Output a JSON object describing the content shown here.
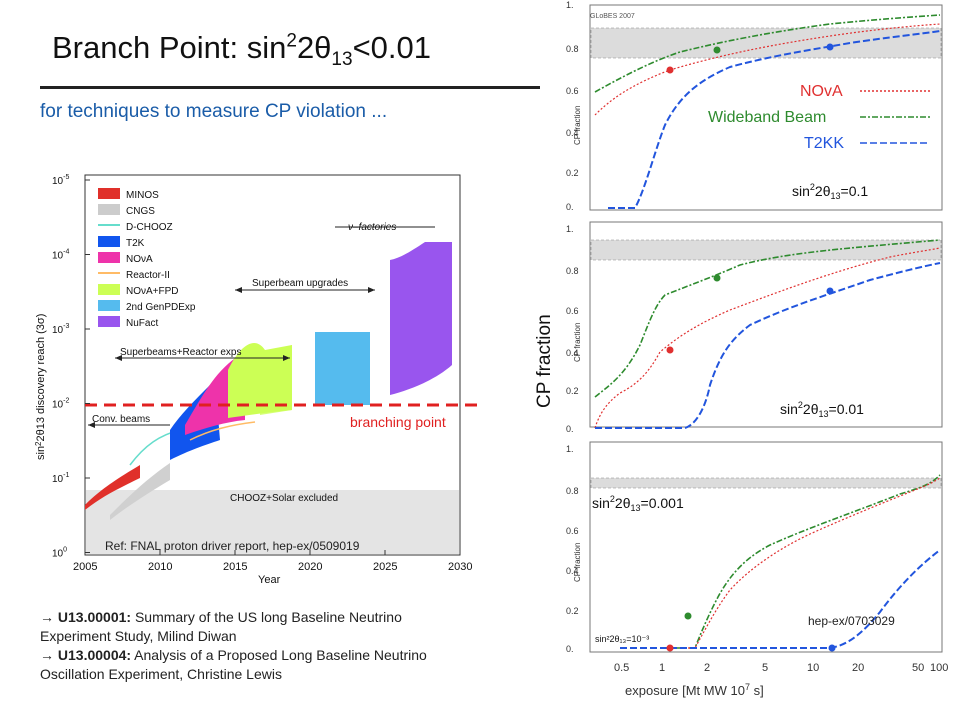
{
  "slide": {
    "title_main": "Branch Point:  sin",
    "title_sup": "2",
    "title_mid": "2θ",
    "title_sub": "13",
    "title_tail": "<0.01",
    "subtitle": "for techniques to measure CP violation ...",
    "ref_label": "Ref: FNAL proton driver report, hep-ex/0509019",
    "branching_label": "branching point",
    "refs": [
      {
        "id": "U13.00001:",
        "text": " Summary of the US long Baseline Neutrino Experiment Study, Milind Diwan"
      },
      {
        "id": "U13.00004:",
        "text": " Analysis of a Proposed Long Baseline Neutrino Oscillation Experiment, Christine Lewis"
      }
    ],
    "arrow": "→"
  },
  "colors": {
    "title_blue": "#1a5ca8",
    "red": "#e03030",
    "green": "#2e8b2e",
    "blue": "#2255dd",
    "dashed_red": "#e02020"
  },
  "left_chart": {
    "ylabel_pre": "sin",
    "ylabel": "2θ13 discovery reach (3σ)",
    "xlabel": "Year",
    "x_ticks": [
      "2005",
      "2010",
      "2015",
      "2020",
      "2025",
      "2030"
    ],
    "y_ticks": [
      "10",
      "10",
      "10",
      "10",
      "10",
      "10"
    ],
    "y_exps": [
      "-5",
      "-4",
      "-3",
      "-2",
      "-1",
      "0"
    ],
    "legend": [
      {
        "name": "MINOS",
        "color": "#e0302a"
      },
      {
        "name": "CNGS",
        "color": "#cccccc"
      },
      {
        "name": "D-CHOOZ",
        "color": "#66ddcc",
        "line": true
      },
      {
        "name": "T2K",
        "color": "#1155ee"
      },
      {
        "name": "NOνA",
        "color": "#ee33aa"
      },
      {
        "name": "Reactor-II",
        "color": "#ffbb66",
        "line": true
      },
      {
        "name": "NOνA+FPD",
        "color": "#ccff55"
      },
      {
        "name": "2nd GenPDExp",
        "color": "#55bbee"
      },
      {
        "name": "NuFact",
        "color": "#9955ee"
      }
    ],
    "annotations": {
      "nufactories": "ν–factories",
      "superbeam_upgrades": "Superbeam upgrades",
      "superbeams_reactor": "Superbeams+Reactor exps",
      "conv_beams": "Conv. beams",
      "chooz": "CHOOZ+Solar excluded"
    }
  },
  "right_chart": {
    "ylabel": "CP fraction",
    "xlabel": "exposure [Mt MW 10",
    "xlabel_sup": "7",
    "xlabel_tail": " s]",
    "x_ticks": [
      "0.5",
      "1",
      "2",
      "5",
      "10",
      "20",
      "50",
      "100"
    ],
    "y_ticks": [
      "1.",
      "0.8",
      "0.6",
      "0.4",
      "0.2",
      "0."
    ],
    "globes": "GLoBES 2007",
    "hep": "hep-ex/0703029",
    "legend": [
      {
        "name": "NOvA",
        "color": "#e03030"
      },
      {
        "name": "Wideband Beam",
        "color": "#2e8b2e"
      },
      {
        "name": "T2KK",
        "color": "#2255dd"
      }
    ],
    "panel_sin": "sin",
    "panel_2": "2",
    "panel_theta": "2θ",
    "panel_13": "13",
    "panels": [
      {
        "value": "=0.1"
      },
      {
        "value": "=0.01"
      },
      {
        "value": "=0.001"
      }
    ],
    "inner_label": "sin²2θ₁₃=10⁻³"
  }
}
